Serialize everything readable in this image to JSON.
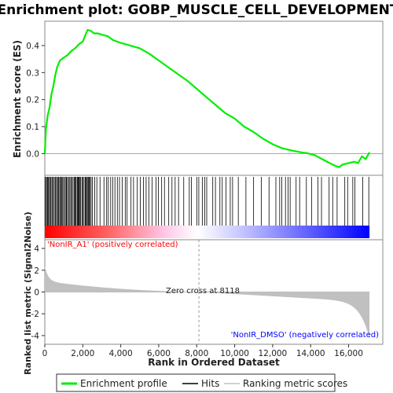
{
  "chart_data": {
    "type": "line",
    "title": "Enrichment plot: GOBP_MUSCLE_CELL_DEVELOPMENT",
    "xlabel": "Rank in Ordered Dataset",
    "xlim": [
      0,
      17800
    ],
    "x_ticks": [
      "0",
      "2,000",
      "4,000",
      "6,000",
      "8,000",
      "10,000",
      "12,000",
      "14,000",
      "16,000"
    ],
    "x_tick_values": [
      0,
      2000,
      4000,
      6000,
      8000,
      10000,
      12000,
      14000,
      16000
    ],
    "es_panel": {
      "ylabel": "Enrichment score (ES)",
      "ylim": [
        -0.08,
        0.49
      ],
      "y_ticks": [
        "0.0",
        "0.1",
        "0.2",
        "0.3",
        "0.4"
      ],
      "y_tick_values": [
        0.0,
        0.1,
        0.2,
        0.3,
        0.4
      ],
      "color": "#00ee00",
      "series": [
        {
          "name": "Enrichment profile",
          "x": [
            0,
            60,
            150,
            250,
            350,
            450,
            550,
            650,
            800,
            1000,
            1200,
            1400,
            1600,
            1800,
            2000,
            2150,
            2250,
            2400,
            2600,
            2800,
            3000,
            3300,
            3600,
            4000,
            4500,
            5000,
            5500,
            6000,
            6500,
            7000,
            7500,
            8000,
            8500,
            9000,
            9500,
            10000,
            10500,
            11000,
            11500,
            12000,
            12500,
            13000,
            13500,
            13800,
            14200,
            14600,
            15000,
            15300,
            15500,
            15700,
            16000,
            16300,
            16500,
            16700,
            16900,
            17100
          ],
          "values": [
            0.0,
            0.09,
            0.14,
            0.17,
            0.22,
            0.25,
            0.29,
            0.32,
            0.345,
            0.355,
            0.365,
            0.38,
            0.39,
            0.405,
            0.415,
            0.44,
            0.458,
            0.455,
            0.445,
            0.445,
            0.44,
            0.435,
            0.42,
            0.41,
            0.4,
            0.39,
            0.37,
            0.345,
            0.32,
            0.295,
            0.27,
            0.24,
            0.21,
            0.18,
            0.15,
            0.13,
            0.1,
            0.08,
            0.055,
            0.035,
            0.02,
            0.012,
            0.005,
            0.002,
            -0.005,
            -0.02,
            -0.035,
            -0.045,
            -0.05,
            -0.04,
            -0.035,
            -0.03,
            -0.035,
            -0.01,
            -0.02,
            0.005
          ]
        }
      ]
    },
    "hits_panel": {
      "legend_name": "Hits",
      "color_bar": {
        "left_color": "#ff0000",
        "mid_color": "#ffffff",
        "right_color": "#0000ff",
        "dataset_size": 17100
      }
    },
    "metric_panel": {
      "ylabel": "Ranked list metric (Signal2Noise)",
      "ylim": [
        -4.8,
        4.8
      ],
      "y_ticks": [
        "4",
        "2",
        "0",
        "-2",
        "-4"
      ],
      "y_tick_values": [
        4,
        2,
        0,
        -2,
        -4
      ],
      "legend_name": "Ranking metric scores",
      "fill_color": "#c0c0c0",
      "zero_cross": 8118,
      "zero_cross_label": "Zero cross at 8118",
      "pos_label": "'NonIR_A1' (positively correlated)",
      "neg_label": "'NonIR_DMSO' (negatively correlated)",
      "pos_color": "#ff0000",
      "neg_color": "#0000ff"
    },
    "legend": {
      "placement": "bottom",
      "entries": [
        {
          "name": "Enrichment profile",
          "color": "#00ee00"
        },
        {
          "name": "Hits",
          "color": "#000000"
        },
        {
          "name": "Ranking metric scores",
          "color": "#c0c0c0"
        }
      ]
    },
    "grid": false
  }
}
